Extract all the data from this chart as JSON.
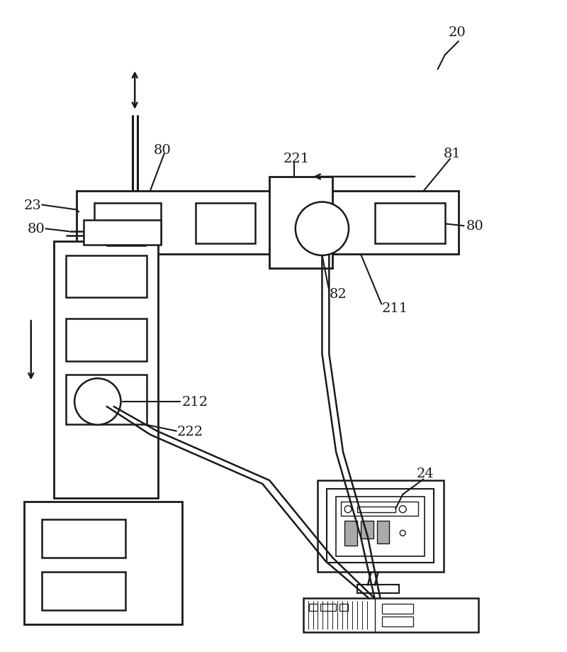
{
  "bg_color": "#ffffff",
  "line_color": "#1a1a1a",
  "label_color": "#1a1a1a",
  "fig_width": 8.0,
  "fig_height": 9.2
}
